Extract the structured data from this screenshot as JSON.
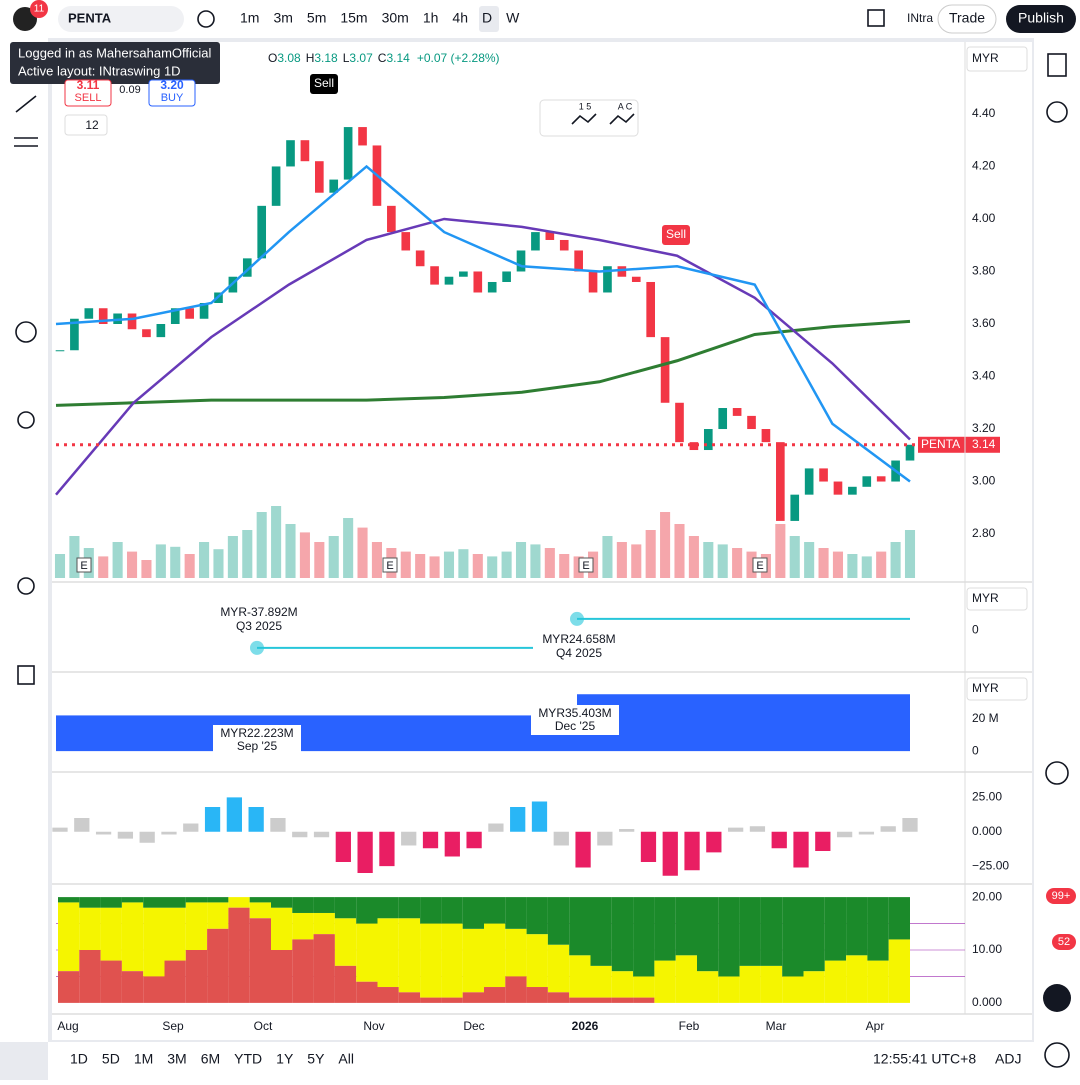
{
  "toolbar": {
    "notifications": "11",
    "symbol": "PENTA",
    "intervals": [
      "1m",
      "3m",
      "5m",
      "15m",
      "30m",
      "1h",
      "4h",
      "D",
      "W"
    ],
    "layout": "INtra",
    "trade": "Trade",
    "publish": "Publish"
  },
  "tooltip": {
    "user": "Logged in as MahersahamOfficial",
    "layout": "Active layout: INtraswing 1D"
  },
  "legend": {
    "ohlc": [
      "O",
      "3.08",
      "H",
      "3.18",
      "L",
      "3.07",
      "C",
      "3.14"
    ],
    "change": "+0.07 (+2.28%)",
    "sell_price": "3.11",
    "sell": "SELL",
    "spread": "0.09",
    "buy_price": "3.20",
    "buy": "BUY",
    "indicators": "12",
    "tools": [
      "1 5",
      "A C"
    ]
  },
  "signals": [
    "Sell",
    "Sell"
  ],
  "price_chart": {
    "currency": "MYR",
    "ylim": [
      2.625,
      4.674
    ],
    "yticks": [
      {
        "value": 4.4,
        "label": "4.40"
      },
      {
        "value": 4.2,
        "label": "4.20"
      },
      {
        "value": 4,
        "label": "4.00"
      },
      {
        "value": 3.8,
        "label": "3.80"
      },
      {
        "value": 3.6,
        "label": "3.60"
      },
      {
        "value": 3.4,
        "label": "3.40"
      },
      {
        "value": 3.2,
        "label": "3.20"
      },
      {
        "value": 3,
        "label": "3.00"
      },
      {
        "value": 2.8,
        "label": "2.80"
      }
    ],
    "last_symbol": "PENTA",
    "last_value": 3.14,
    "closes": [
      3.5,
      3.62,
      3.66,
      3.6,
      3.64,
      3.58,
      3.55,
      3.6,
      3.66,
      3.62,
      3.68,
      3.72,
      3.78,
      3.85,
      4.05,
      4.2,
      4.3,
      4.22,
      4.1,
      4.15,
      4.35,
      4.28,
      4.05,
      3.95,
      3.88,
      3.82,
      3.75,
      3.78,
      3.8,
      3.72,
      3.76,
      3.8,
      3.88,
      3.95,
      3.92,
      3.88,
      3.8,
      3.72,
      3.82,
      3.78,
      3.76,
      3.55,
      3.3,
      3.15,
      3.12,
      3.2,
      3.28,
      3.25,
      3.2,
      3.15,
      2.85,
      2.95,
      3.05,
      3.0,
      2.95,
      2.98,
      3.02,
      3.0,
      3.08,
      3.14
    ],
    "volume": [
      20,
      35,
      25,
      18,
      30,
      22,
      15,
      28,
      26,
      20,
      30,
      24,
      35,
      40,
      55,
      60,
      45,
      38,
      30,
      35,
      50,
      42,
      30,
      25,
      22,
      20,
      18,
      22,
      24,
      20,
      18,
      22,
      30,
      28,
      25,
      20,
      18,
      22,
      35,
      30,
      28,
      40,
      55,
      45,
      35,
      30,
      28,
      25,
      22,
      20,
      45,
      35,
      30,
      25,
      22,
      20,
      18,
      22,
      30,
      40
    ],
    "ma50": [
      2.95,
      3.3,
      3.55,
      3.75,
      3.92,
      4.0,
      3.97,
      3.92,
      3.86,
      3.7,
      3.45,
      3.16
    ],
    "ma200": [
      3.29,
      3.3,
      3.31,
      3.31,
      3.31,
      3.32,
      3.34,
      3.38,
      3.46,
      3.56,
      3.59,
      3.61
    ],
    "ema": [
      3.6,
      3.62,
      3.68,
      3.95,
      4.2,
      3.95,
      3.82,
      3.8,
      3.82,
      3.75,
      3.22,
      3.0
    ],
    "earnings": [
      "E",
      "E",
      "E",
      "E"
    ]
  },
  "pane2": {
    "currency": "MYR",
    "ylim": [
      -90,
      100
    ],
    "yticks": [
      0
    ],
    "values": [
      -37.892,
      24.658
    ],
    "value_labels": [
      "MYR-37.892M",
      "MYR24.658M"
    ],
    "periods": [
      "Q3 2025",
      "Q4 2025"
    ]
  },
  "pane3": {
    "currency": "MYR",
    "ylim": [
      -13,
      48
    ],
    "yticks": [
      {
        "value": 20,
        "label": "20 M"
      },
      0
    ],
    "values": [
      22.223,
      35.403
    ],
    "value_labels": [
      "MYR22.223M",
      "MYR35.403M"
    ],
    "periods": [
      "Sep '25",
      "Dec '25"
    ]
  },
  "pane4": {
    "ylim": [
      -38,
      42
    ],
    "yticks": [
      {
        "value": 25,
        "label": "25.00"
      },
      {
        "value": 0,
        "label": "0.000"
      },
      {
        "value": -25,
        "label": "−25.00"
      }
    ],
    "values": [
      3,
      10,
      -2,
      -5,
      -8,
      -2,
      6,
      18,
      25,
      18,
      10,
      -4,
      -4,
      -22,
      -30,
      -25,
      -10,
      -12,
      -18,
      -12,
      6,
      18,
      22,
      -10,
      -26,
      -10,
      2,
      -22,
      -32,
      -28,
      -15,
      3,
      4,
      -12,
      -26,
      -14,
      -4,
      -2,
      4,
      10
    ]
  },
  "pane5": {
    "ylim": [
      -2.1,
      22.1
    ],
    "yticks": [
      {
        "value": 20,
        "label": "20.00"
      },
      {
        "value": 10,
        "label": "10.00"
      },
      {
        "value": 0,
        "label": "0.000"
      }
    ],
    "bear": [
      6,
      10,
      8,
      6,
      5,
      8,
      10,
      14,
      18,
      16,
      10,
      12,
      13,
      7,
      4,
      3,
      2,
      1,
      1,
      2,
      3,
      5,
      3,
      2,
      1,
      1,
      1,
      1,
      0,
      0,
      0,
      0,
      0,
      0,
      0,
      0,
      0,
      0,
      0,
      0
    ],
    "bull": [
      19,
      18,
      18,
      19,
      18,
      18,
      19,
      19,
      20,
      19,
      18,
      17,
      17,
      16,
      15,
      16,
      16,
      15,
      15,
      14,
      15,
      14,
      13,
      11,
      9,
      7,
      6,
      5,
      8,
      9,
      6,
      5,
      7,
      7,
      5,
      6,
      8,
      9,
      8,
      12
    ]
  },
  "x_axis": [
    "Aug",
    "Sep",
    "Oct",
    "Nov",
    "Dec",
    "2026",
    "Feb",
    "Mar",
    "Apr"
  ],
  "bottom": {
    "ranges": [
      "1D",
      "5D",
      "1M",
      "3M",
      "6M",
      "YTD",
      "1Y",
      "5Y",
      "All"
    ],
    "clock": "12:55:41 UTC+8",
    "adj": "ADJ"
  },
  "sidebar_badges": [
    "99+",
    "52"
  ]
}
